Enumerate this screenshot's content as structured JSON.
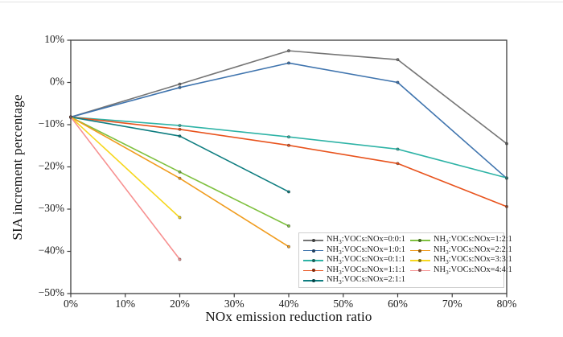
{
  "figure": {
    "background": "#ffffff",
    "frame_color": "#3c3c3c"
  },
  "chart_data": {
    "type": "line",
    "title": "",
    "xlabel": "NOx emission reduction ratio",
    "ylabel": "SIA increment percentage",
    "xlim": [
      0,
      80
    ],
    "ylim": [
      -50,
      10
    ],
    "grid": false,
    "xticks": {
      "values": [
        0,
        10,
        20,
        30,
        40,
        50,
        60,
        70,
        80
      ],
      "labels": [
        "0%",
        "10%",
        "20%",
        "30%",
        "40%",
        "50%",
        "60%",
        "70%",
        "80%"
      ]
    },
    "yticks": {
      "values": [
        10,
        0,
        -10,
        -20,
        -30,
        -40,
        -50
      ],
      "labels": [
        "10%",
        "0%",
        "−10%",
        "−20%",
        "−30%",
        "−40%",
        "−50%"
      ]
    },
    "legend": {
      "position": "lower right",
      "columns": 2,
      "border_color": "#cfcfcf"
    },
    "series": [
      {
        "name": "NH3:VOCs:NOx=0:0:1",
        "color": "#757575",
        "x": [
          0,
          20,
          40,
          60,
          80
        ],
        "y": [
          -8.2,
          -0.4,
          7.5,
          5.4,
          -14.5
        ]
      },
      {
        "name": "NH3:VOCs:NOx=1:0:1",
        "color": "#3f74ae",
        "x": [
          0,
          20,
          40,
          60,
          80
        ],
        "y": [
          -8.2,
          -1.2,
          4.6,
          0.0,
          -22.7
        ]
      },
      {
        "name": "NH3:VOCs:NOx=0:1:1",
        "color": "#2eb3a6",
        "x": [
          0,
          20,
          40,
          60,
          80
        ],
        "y": [
          -8.2,
          -10.2,
          -12.9,
          -15.8,
          -22.6
        ]
      },
      {
        "name": "NH3:VOCs:NOx=1:1:1",
        "color": "#e8531d",
        "x": [
          0,
          20,
          40,
          60,
          80
        ],
        "y": [
          -8.2,
          -11.1,
          -14.9,
          -19.2,
          -29.4
        ]
      },
      {
        "name": "NH3:VOCs:NOx=2:1:1",
        "color": "#0e7d80",
        "x": [
          0,
          20,
          40
        ],
        "y": [
          -8.2,
          -12.7,
          -25.9
        ]
      },
      {
        "name": "NH3:VOCs:NOx=1:2:1",
        "color": "#7fc140",
        "x": [
          0,
          20,
          40
        ],
        "y": [
          -8.2,
          -21.2,
          -34.0
        ]
      },
      {
        "name": "NH3:VOCs:NOx=2:2:1",
        "color": "#f09c1e",
        "x": [
          0,
          20,
          40
        ],
        "y": [
          -8.2,
          -22.7,
          -38.9
        ]
      },
      {
        "name": "NH3:VOCs:NOx=3:3:1",
        "color": "#f6d71f",
        "x": [
          0,
          20
        ],
        "y": [
          -8.2,
          -32.0
        ]
      },
      {
        "name": "NH3:VOCs:NOx=4:4:1",
        "color": "#f79191",
        "x": [
          0,
          20
        ],
        "y": [
          -8.2,
          -41.9
        ]
      }
    ]
  }
}
